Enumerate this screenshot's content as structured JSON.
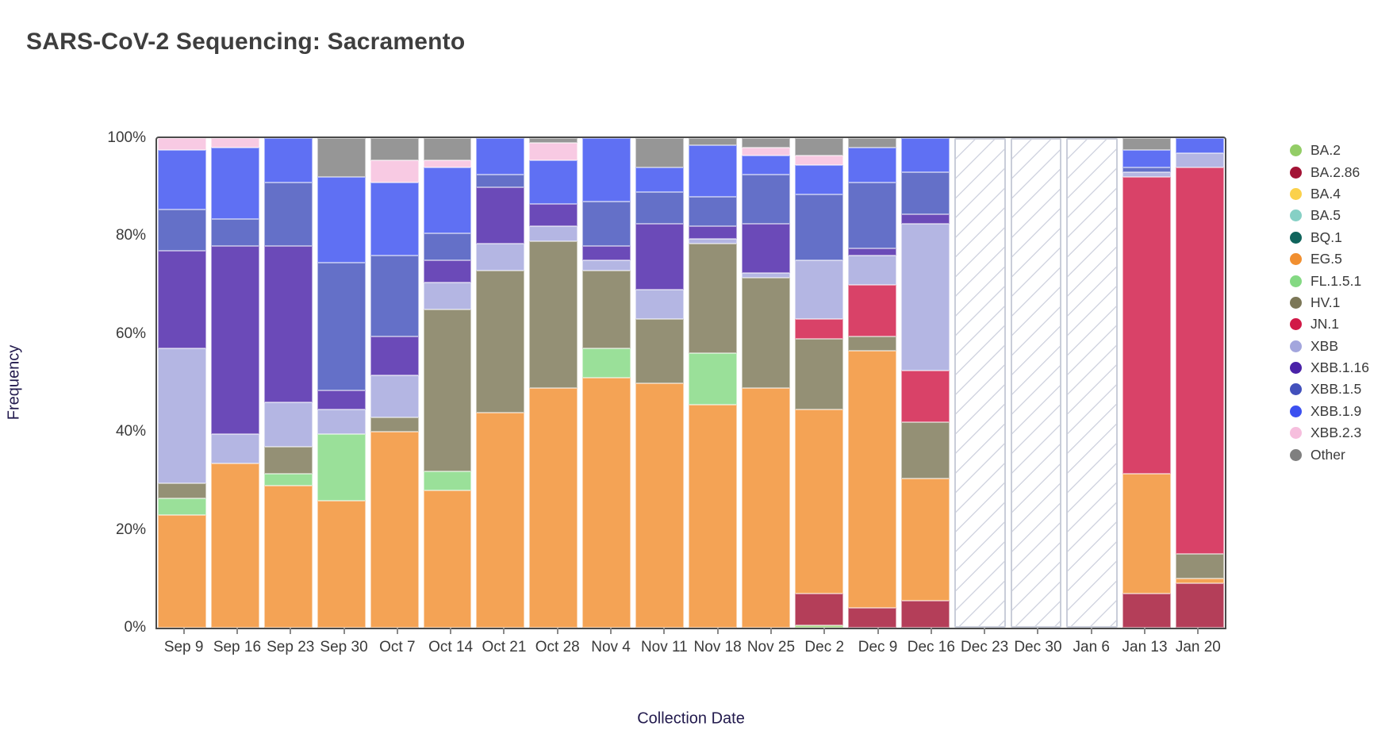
{
  "title": "SARS-CoV-2 Sequencing: Sacramento",
  "chart_data": {
    "type": "bar",
    "stacked": true,
    "percent": true,
    "title": "SARS-CoV-2 Sequencing: Sacramento",
    "xlabel": "Collection Date",
    "ylabel": "Frequency",
    "ylim": [
      0,
      100
    ],
    "yticks": [
      "0%",
      "20%",
      "40%",
      "60%",
      "80%",
      "100%"
    ],
    "ytick_values": [
      0,
      20,
      40,
      60,
      80,
      100
    ],
    "grid": false,
    "legend_position": "right",
    "categories": [
      "Sep 9",
      "Sep 16",
      "Sep 23",
      "Sep 30",
      "Oct 7",
      "Oct 14",
      "Oct 21",
      "Oct 28",
      "Nov 4",
      "Nov 11",
      "Nov 18",
      "Nov 25",
      "Dec 2",
      "Dec 9",
      "Dec 16",
      "Dec 23",
      "Dec 30",
      "Jan 6",
      "Jan 13",
      "Jan 20"
    ],
    "no_data_categories": [
      "Dec 23",
      "Dec 30",
      "Jan 6"
    ],
    "no_data_style": "diagonal-hatch",
    "series": [
      {
        "name": "BA.2",
        "color": "#93cd66",
        "values": [
          0,
          0,
          0,
          0,
          0,
          0,
          0,
          0,
          0,
          0,
          0,
          0,
          0.5,
          0,
          0,
          null,
          null,
          null,
          0,
          0
        ]
      },
      {
        "name": "BA.2.86",
        "color": "#a31335",
        "values": [
          0,
          0,
          0,
          0,
          0,
          0,
          0,
          0,
          0,
          0,
          0,
          0,
          6.5,
          4,
          5.5,
          null,
          null,
          null,
          7,
          9
        ]
      },
      {
        "name": "BA.4",
        "color": "#fbd14b",
        "values": [
          0,
          0,
          0,
          0,
          0,
          0,
          0,
          0,
          0,
          0,
          0,
          0,
          0,
          0,
          0,
          null,
          null,
          null,
          0,
          0
        ]
      },
      {
        "name": "BA.5",
        "color": "#86d0c5",
        "values": [
          0,
          0,
          0,
          0,
          0,
          0,
          0,
          0,
          0,
          0,
          0,
          0,
          0,
          0,
          0,
          null,
          null,
          null,
          0,
          0
        ]
      },
      {
        "name": "BQ.1",
        "color": "#10645c",
        "values": [
          0,
          0,
          0,
          0,
          0,
          0,
          0,
          0,
          0,
          0,
          0,
          0,
          0,
          0,
          0,
          null,
          null,
          null,
          0,
          0
        ]
      },
      {
        "name": "EG.5",
        "color": "#f18f30",
        "values": [
          23,
          33.5,
          29,
          26,
          40,
          28,
          44,
          49,
          51,
          50,
          45.5,
          49,
          37.5,
          52.5,
          25,
          null,
          null,
          null,
          24.5,
          1
        ]
      },
      {
        "name": "FL.1.5.1",
        "color": "#84d983",
        "values": [
          3.5,
          0,
          2.5,
          13.5,
          0,
          4,
          0,
          0,
          6,
          0,
          10.5,
          0,
          0,
          0,
          0,
          null,
          null,
          null,
          0,
          0
        ]
      },
      {
        "name": "HV.1",
        "color": "#7c7757",
        "values": [
          3,
          0,
          5.5,
          0,
          3,
          33,
          29,
          30,
          16,
          13,
          22.5,
          22.5,
          14.5,
          3,
          11.5,
          null,
          null,
          null,
          0,
          5
        ]
      },
      {
        "name": "JN.1",
        "color": "#d11947",
        "values": [
          0,
          0,
          0,
          0,
          0,
          0,
          0,
          0,
          0,
          0,
          0,
          0,
          4,
          10.5,
          10.5,
          null,
          null,
          null,
          60.5,
          79
        ]
      },
      {
        "name": "XBB",
        "color": "#a3a6dd",
        "values": [
          27.5,
          6,
          9,
          5,
          8.5,
          5.5,
          5.5,
          3,
          2,
          6,
          1,
          1,
          12,
          6,
          30,
          null,
          null,
          null,
          1,
          3
        ]
      },
      {
        "name": "XBB.1.16",
        "color": "#4a22a8",
        "values": [
          20,
          38.5,
          32,
          4,
          8,
          4.5,
          11.5,
          4.5,
          3,
          13.5,
          2.5,
          10,
          0,
          1.5,
          2,
          null,
          null,
          null,
          0,
          0
        ]
      },
      {
        "name": "XBB.1.5",
        "color": "#4250bc",
        "values": [
          8.5,
          5.5,
          13,
          26,
          16.5,
          5.5,
          2.5,
          0,
          9,
          6.5,
          6,
          10,
          13.5,
          13.5,
          8.5,
          null,
          null,
          null,
          1,
          0
        ]
      },
      {
        "name": "XBB.1.9",
        "color": "#3c50f0",
        "values": [
          12,
          14.5,
          9,
          17.5,
          15,
          13.5,
          7.5,
          9,
          13,
          5,
          10.5,
          4,
          6,
          7,
          7,
          null,
          null,
          null,
          3.5,
          3
        ]
      },
      {
        "name": "XBB.2.3",
        "color": "#f6bedd",
        "values": [
          2.5,
          2,
          0,
          0,
          4.5,
          1.5,
          0,
          3.5,
          0,
          0,
          0,
          1.5,
          2,
          0,
          0,
          null,
          null,
          null,
          0,
          0
        ]
      },
      {
        "name": "Other",
        "color": "#7f7f7f",
        "values": [
          0,
          0,
          0,
          8,
          4.5,
          4.5,
          0,
          1,
          0,
          6,
          1.5,
          2,
          3.5,
          2,
          0,
          null,
          null,
          null,
          2.5,
          0
        ]
      }
    ],
    "bar_fill_opacity": 0.82
  }
}
